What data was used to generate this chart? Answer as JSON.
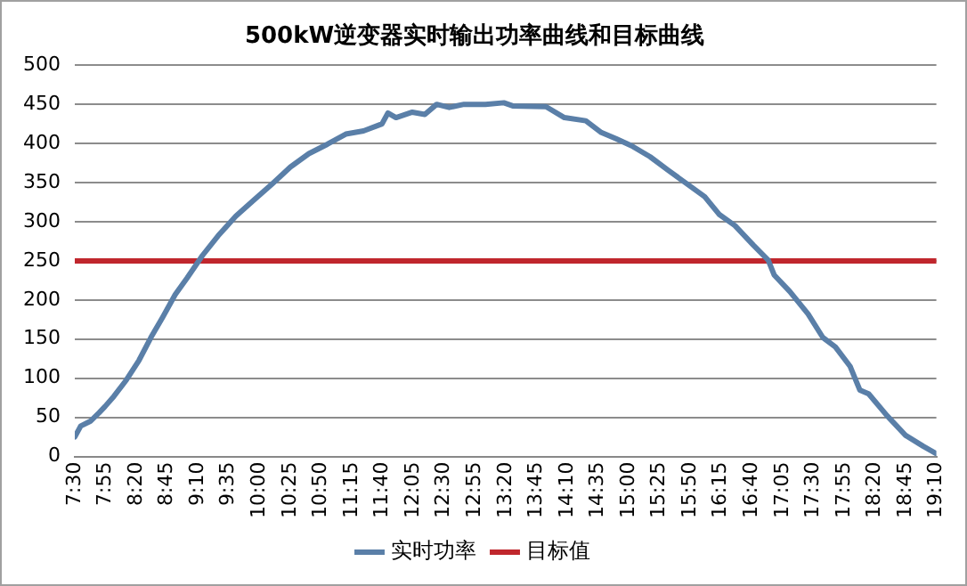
{
  "chart_data": {
    "type": "line",
    "title": "500kW逆变器实时输出功率曲线和目标曲线",
    "xlim": [
      7.5,
      19.1667
    ],
    "xticks": [
      {
        "value": 7.5,
        "label": "7:30"
      },
      {
        "value": 7.9167,
        "label": "7:55"
      },
      {
        "value": 8.3333,
        "label": "8:20"
      },
      {
        "value": 8.75,
        "label": "8:45"
      },
      {
        "value": 9.1667,
        "label": "9:10"
      },
      {
        "value": 9.5833,
        "label": "9:35"
      },
      {
        "value": 10,
        "label": "10:00"
      },
      {
        "value": 10.4167,
        "label": "10:25"
      },
      {
        "value": 10.8333,
        "label": "10:50"
      },
      {
        "value": 11.25,
        "label": "11:15"
      },
      {
        "value": 11.6667,
        "label": "11:40"
      },
      {
        "value": 12.0833,
        "label": "12:05"
      },
      {
        "value": 12.5,
        "label": "12:30"
      },
      {
        "value": 12.9167,
        "label": "12:55"
      },
      {
        "value": 13.3333,
        "label": "13:20"
      },
      {
        "value": 13.75,
        "label": "13:45"
      },
      {
        "value": 14.1667,
        "label": "14:10"
      },
      {
        "value": 14.5833,
        "label": "14:35"
      },
      {
        "value": 15,
        "label": "15:00"
      },
      {
        "value": 15.4167,
        "label": "15:25"
      },
      {
        "value": 15.8333,
        "label": "15:50"
      },
      {
        "value": 16.25,
        "label": "16:15"
      },
      {
        "value": 16.6667,
        "label": "16:40"
      },
      {
        "value": 17.0833,
        "label": "17:05"
      },
      {
        "value": 17.5,
        "label": "17:30"
      },
      {
        "value": 17.9167,
        "label": "17:55"
      },
      {
        "value": 18.3333,
        "label": "18:20"
      },
      {
        "value": 18.75,
        "label": "18:45"
      },
      {
        "value": 19.1667,
        "label": "19:10"
      }
    ],
    "ylim": [
      0,
      500
    ],
    "yticks": [
      0,
      50,
      100,
      150,
      200,
      250,
      300,
      350,
      400,
      450,
      500
    ],
    "grid": "y",
    "legend": "bottom",
    "marker": "none",
    "line_style": "solid",
    "series": [
      {
        "name": "实时功率",
        "color": "#5a7fa8",
        "x": [
          7.5,
          7.58,
          7.71,
          7.83,
          7.91,
          8.03,
          8.2,
          8.37,
          8.53,
          8.69,
          8.86,
          9.02,
          9.23,
          9.44,
          9.68,
          9.93,
          10.18,
          10.42,
          10.67,
          10.92,
          11.17,
          11.41,
          11.66,
          11.74,
          11.85,
          12.07,
          12.24,
          12.4,
          12.57,
          12.77,
          13.06,
          13.31,
          13.43,
          13.88,
          14.13,
          14.42,
          14.63,
          14.83,
          15.04,
          15.29,
          15.53,
          15.78,
          16.03,
          16.23,
          16.44,
          16.69,
          16.89,
          16.97,
          17.18,
          17.43,
          17.63,
          17.8,
          18,
          18.13,
          18.25,
          18.5,
          18.75,
          18.99,
          19.16
        ],
        "values": [
          25,
          39,
          45,
          56,
          64,
          77,
          98,
          123,
          152,
          178,
          207,
          228,
          257,
          282,
          307,
          328,
          349,
          370,
          387,
          399,
          412,
          416,
          425,
          439,
          433,
          440,
          437,
          450,
          446,
          450,
          450,
          452,
          448,
          447,
          433,
          429,
          414,
          406,
          397,
          383,
          366,
          349,
          332,
          309,
          295,
          270,
          251,
          232,
          211,
          182,
          152,
          140,
          115,
          85,
          80,
          52,
          27,
          13,
          4
        ]
      },
      {
        "name": "目标值",
        "color": "#c0272d",
        "x": [
          7.5,
          19.1667
        ],
        "values": [
          250,
          250
        ]
      }
    ]
  }
}
